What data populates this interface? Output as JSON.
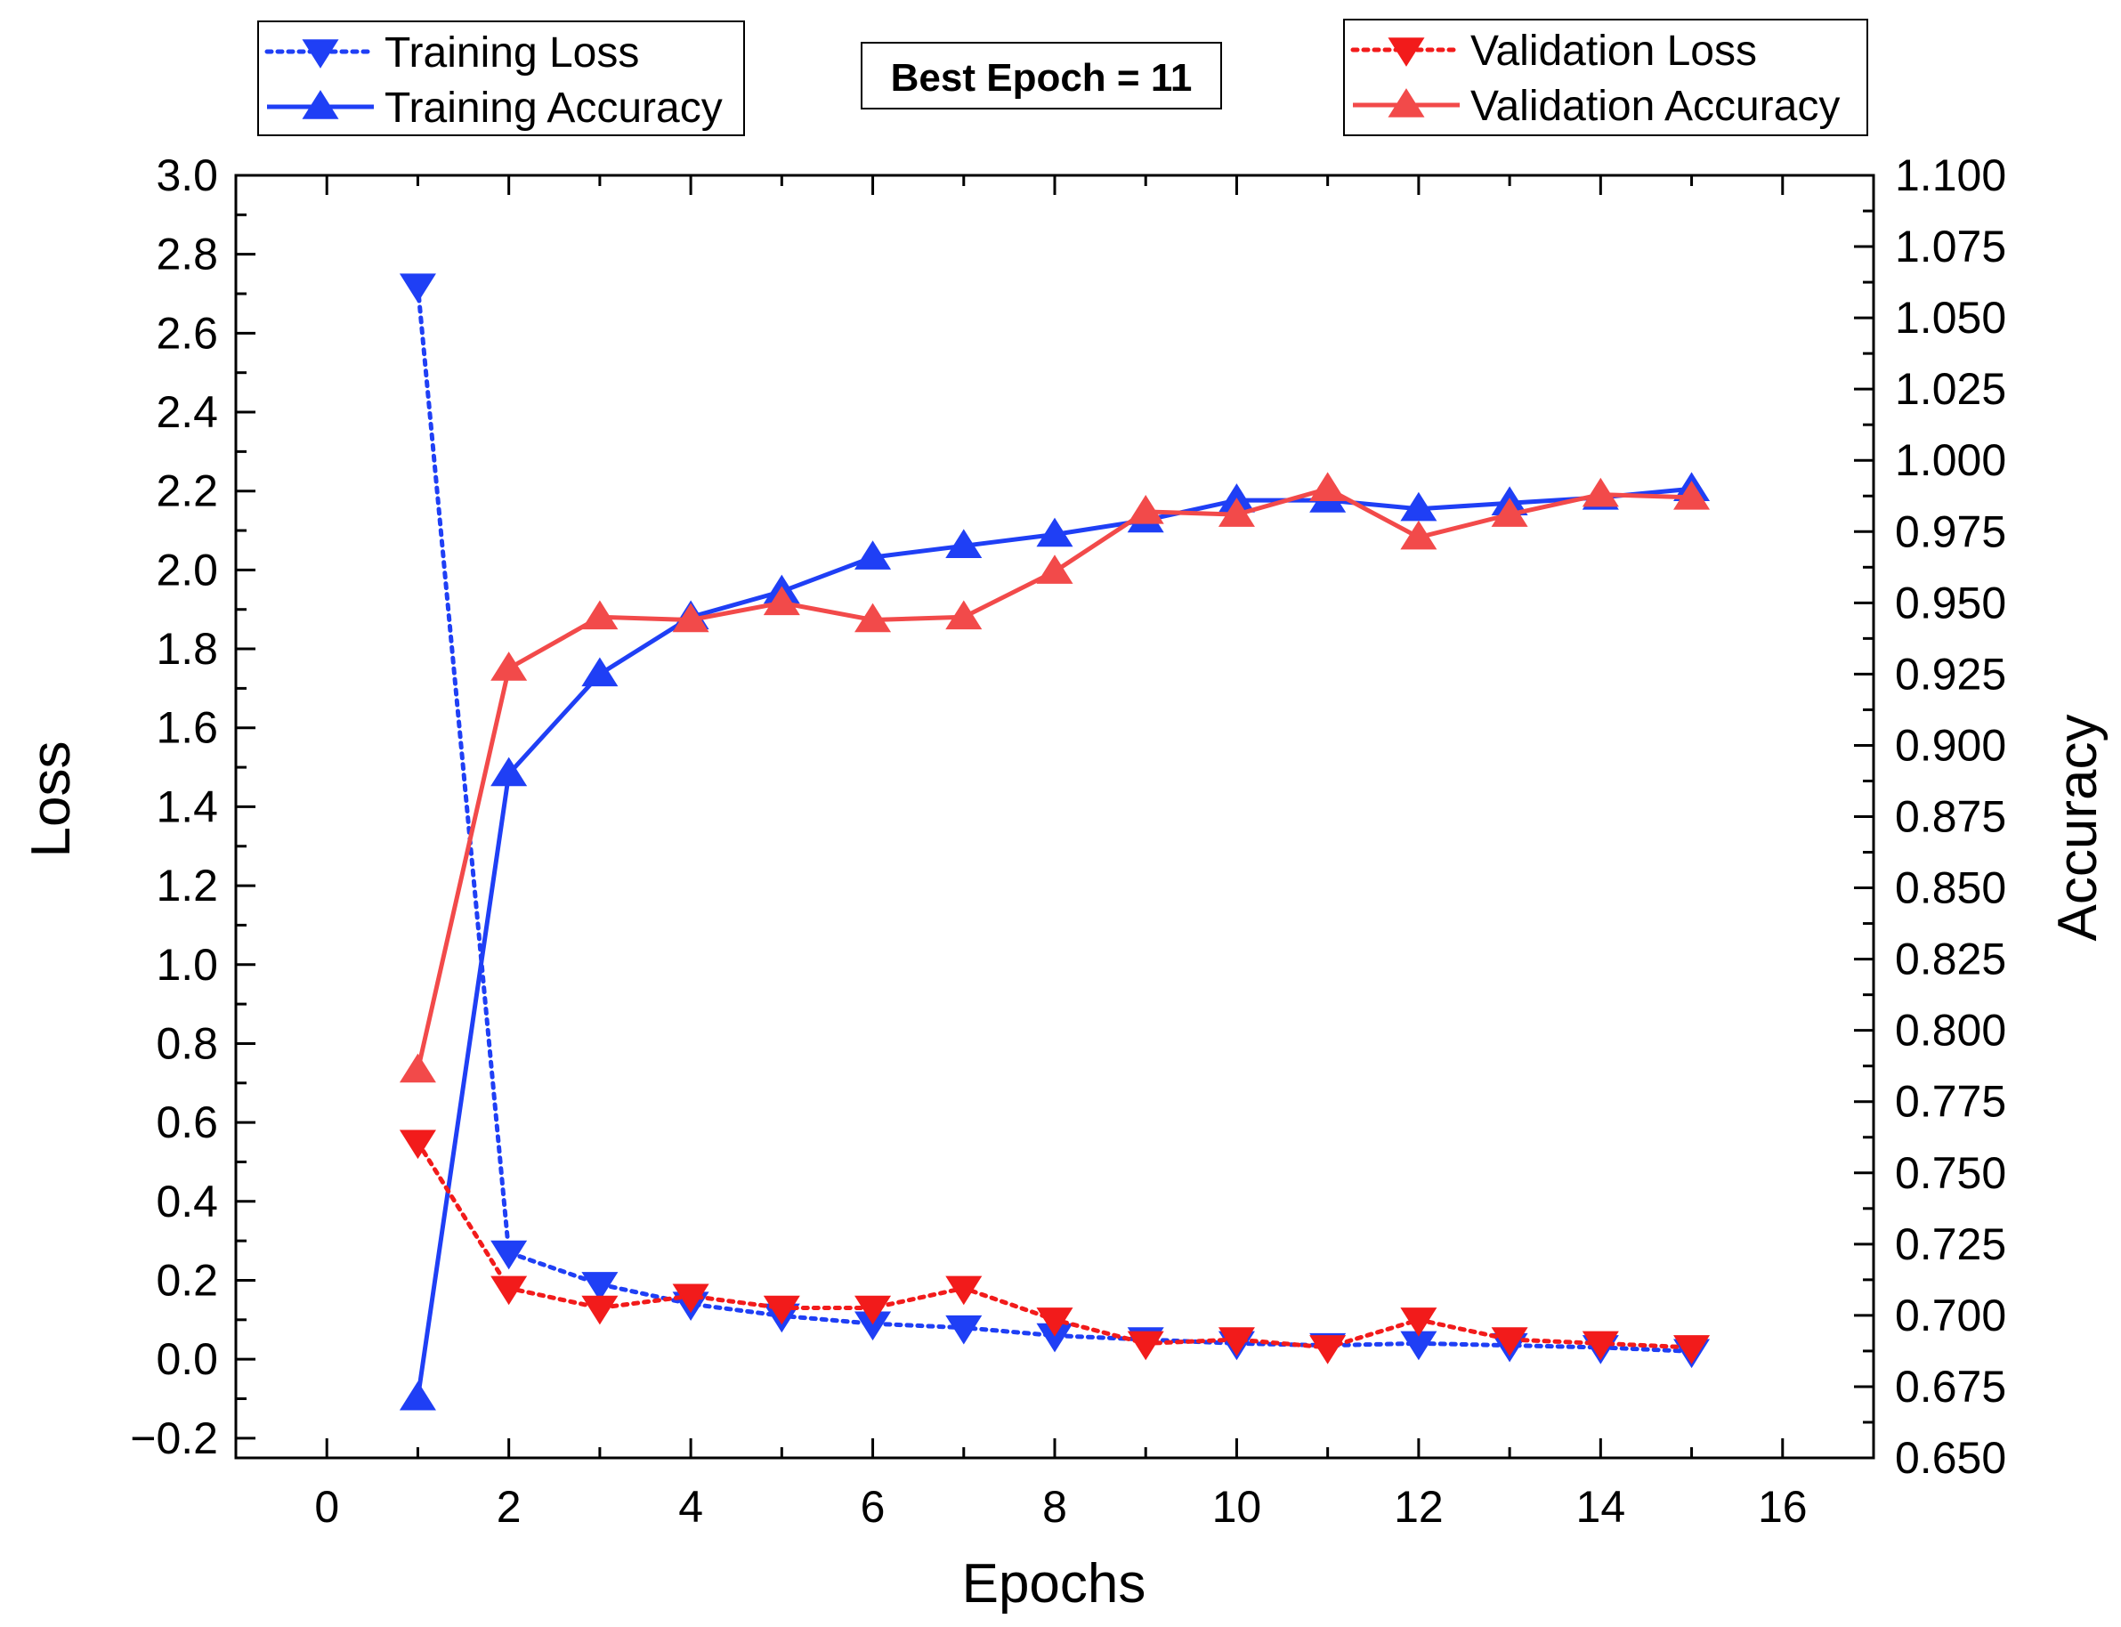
{
  "chart_data": {
    "type": "line",
    "title": "",
    "annotation": "Best Epoch = 11",
    "xlabel": "Epochs",
    "ylabel_left": "Loss",
    "ylabel_right": "Accuracy",
    "xlim": [
      -1,
      17
    ],
    "ylim_left": [
      -0.25,
      3.0
    ],
    "ylim_right": [
      0.65,
      1.1
    ],
    "x_ticks": [
      "0",
      "2",
      "4",
      "6",
      "8",
      "10",
      "12",
      "14",
      "16"
    ],
    "y_left_ticks": [
      "3.0",
      "2.8",
      "2.6",
      "2.4",
      "2.2",
      "2.0",
      "1.8",
      "1.6",
      "1.4",
      "1.2",
      "1.0",
      "0.8",
      "0.6",
      "0.4",
      "0.2",
      "0.0",
      "−0.2"
    ],
    "y_right_ticks": [
      "1.100",
      "1.075",
      "1.050",
      "1.025",
      "1.000",
      "0.975",
      "0.950",
      "0.925",
      "0.900",
      "0.875",
      "0.850",
      "0.825",
      "0.800",
      "0.775",
      "0.750",
      "0.725",
      "0.700",
      "0.675",
      "0.650"
    ],
    "x": [
      1,
      2,
      3,
      4,
      5,
      6,
      7,
      8,
      9,
      10,
      11,
      12,
      13,
      14,
      15
    ],
    "series": [
      {
        "name": "Training Loss",
        "axis": "left",
        "color": "#1f3ff5",
        "style": "dotted",
        "marker": "triangle-down",
        "values": [
          2.72,
          0.27,
          0.19,
          0.14,
          0.11,
          0.09,
          0.08,
          0.06,
          0.05,
          0.04,
          0.035,
          0.04,
          0.035,
          0.03,
          0.02
        ]
      },
      {
        "name": "Training Accuracy",
        "axis": "right",
        "color": "#1f3ff5",
        "style": "solid",
        "marker": "triangle-up",
        "values": [
          0.671,
          0.89,
          0.925,
          0.945,
          0.954,
          0.966,
          0.97,
          0.974,
          0.979,
          0.986,
          0.986,
          0.983,
          0.985,
          0.987,
          0.99
        ]
      },
      {
        "name": "Validation Loss",
        "axis": "left",
        "color": "#f21b1b",
        "style": "dotted",
        "marker": "triangle-down",
        "values": [
          0.55,
          0.18,
          0.13,
          0.16,
          0.13,
          0.13,
          0.18,
          0.1,
          0.04,
          0.05,
          0.03,
          0.1,
          0.05,
          0.04,
          0.03
        ]
      },
      {
        "name": "Validation Accuracy",
        "axis": "right",
        "color": "#f24a4a",
        "style": "solid",
        "marker": "triangle-up",
        "values": [
          0.786,
          0.927,
          0.945,
          0.944,
          0.95,
          0.944,
          0.945,
          0.961,
          0.982,
          0.981,
          0.99,
          0.973,
          0.981,
          0.988,
          0.987
        ]
      }
    ],
    "legend_left": [
      "Training Loss",
      "Training Accuracy"
    ],
    "legend_right": [
      "Validation Loss",
      "Validation Accuracy"
    ]
  }
}
